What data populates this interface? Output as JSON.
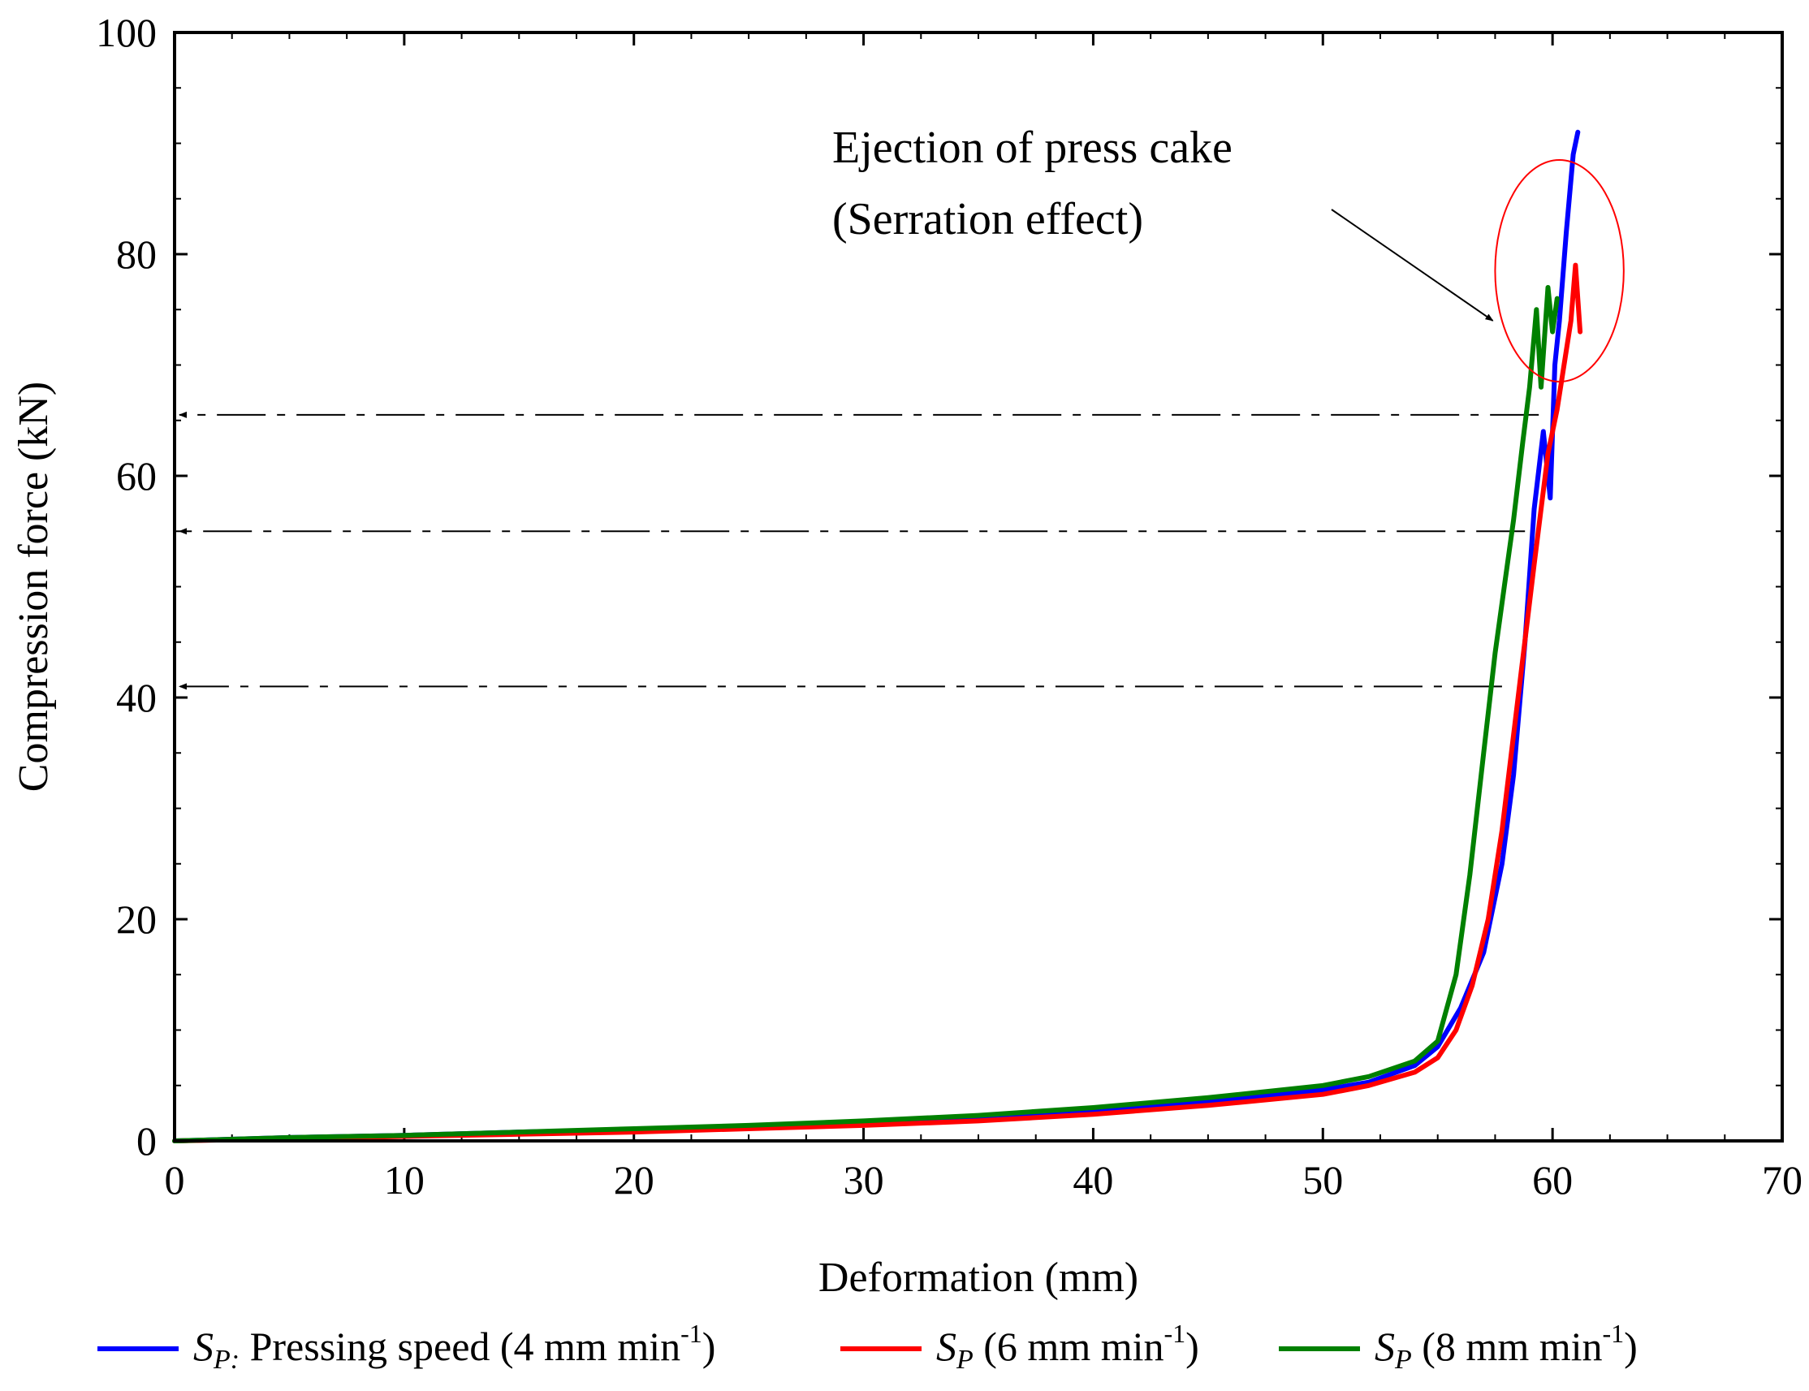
{
  "chart_data": {
    "type": "line",
    "title": "",
    "xlabel": "Deformation (mm)",
    "ylabel": "Compression force (kN)",
    "xlim": [
      0,
      70
    ],
    "ylim": [
      0,
      100
    ],
    "xticks": [
      0,
      10,
      20,
      30,
      40,
      50,
      60,
      70
    ],
    "yticks": [
      0,
      20,
      40,
      60,
      80,
      100
    ],
    "grid": false,
    "legend_position": "bottom",
    "series": [
      {
        "name": "S_P: Pressing speed (4 mm min-1)",
        "legend_symbol": "S",
        "legend_subscript": "P:",
        "legend_text": " Pressing speed (4 mm min",
        "legend_sup": "-1",
        "legend_close": ")",
        "color": "#0000ff",
        "x": [
          0,
          5,
          10,
          15,
          20,
          25,
          30,
          35,
          40,
          45,
          50,
          52,
          54,
          55,
          56,
          57,
          57.8,
          58.3,
          58.8,
          59.2,
          59.6,
          59.9,
          60.1,
          60.3,
          60.6,
          60.9,
          61.1
        ],
        "y": [
          0,
          0.3,
          0.5,
          0.8,
          1.0,
          1.3,
          1.7,
          2.1,
          2.8,
          3.6,
          4.6,
          5.3,
          6.8,
          8.5,
          12,
          17,
          25,
          33,
          45,
          57,
          64,
          58,
          70,
          74,
          82,
          89,
          91
        ]
      },
      {
        "name": "S_P (6 mm min-1)",
        "legend_symbol": "S",
        "legend_subscript": "P",
        "legend_text": " (6 mm min",
        "legend_sup": "-1",
        "legend_close": ")",
        "color": "#ff0000",
        "x": [
          0,
          5,
          10,
          15,
          20,
          25,
          30,
          35,
          40,
          45,
          50,
          52,
          54,
          55,
          55.8,
          56.5,
          57.2,
          57.8,
          58.5,
          59.2,
          59.8,
          60.2,
          60.5,
          60.8,
          61.0,
          61.2
        ],
        "y": [
          0,
          0.2,
          0.4,
          0.6,
          0.8,
          1.1,
          1.4,
          1.8,
          2.4,
          3.2,
          4.2,
          5.0,
          6.2,
          7.5,
          10,
          14,
          20,
          28,
          40,
          52,
          62,
          66,
          70,
          74,
          79,
          73
        ]
      },
      {
        "name": "S_P (8 mm min-1)",
        "legend_symbol": "S",
        "legend_subscript": "P",
        "legend_text": " (8 mm min",
        "legend_sup": "-1",
        "legend_close": ")",
        "color": "#008000",
        "x": [
          0,
          5,
          10,
          15,
          20,
          25,
          30,
          35,
          40,
          45,
          50,
          52,
          54,
          55,
          55.8,
          56.4,
          57.0,
          57.5,
          57.9,
          58.3,
          58.7,
          59.0,
          59.3,
          59.5,
          59.8,
          60.0,
          60.2
        ],
        "y": [
          0,
          0.3,
          0.5,
          0.8,
          1.1,
          1.4,
          1.8,
          2.3,
          3.0,
          3.9,
          5.0,
          5.8,
          7.2,
          9,
          15,
          24,
          35,
          44,
          50,
          56,
          63,
          68,
          75,
          68,
          77,
          73,
          76
        ]
      }
    ],
    "reference_arrows": [
      {
        "from_x": 59.4,
        "y": 65.5,
        "to_x": 0
      },
      {
        "from_x": 58.8,
        "y": 55.0,
        "to_x": 0
      },
      {
        "from_x": 57.8,
        "y": 41.0,
        "to_x": 0
      }
    ],
    "highlight_ellipse": {
      "cx": 60.3,
      "cy": 78.5,
      "rx": 2.8,
      "ry": 10
    },
    "annotation": {
      "line1": "Ejection of press cake",
      "line2": "(Serration effect)",
      "arrow_target_x": 57.4,
      "arrow_target_y": 74
    },
    "colors": {
      "highlight": "#ff0000",
      "axis": "#000000"
    }
  }
}
